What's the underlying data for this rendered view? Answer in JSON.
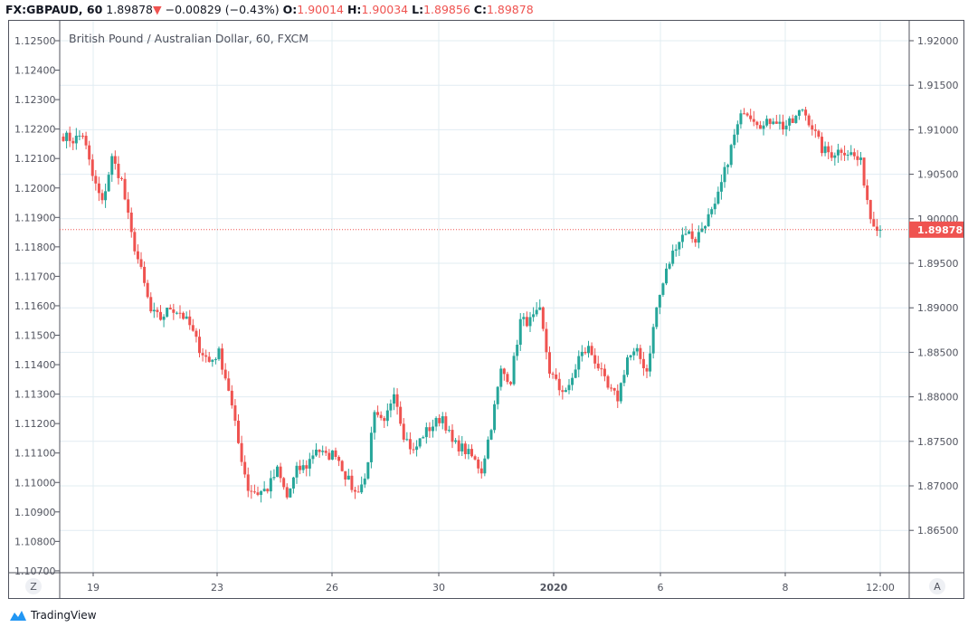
{
  "header": {
    "symbol": "FX:GBPAUD, 60",
    "last": "1.89878",
    "direction_icon": "triangle-down-icon",
    "change": "−0.00829 (−0.43%)",
    "o_label": "O:",
    "o": "1.90014",
    "h_label": "H:",
    "h": "1.90034",
    "l_label": "L:",
    "l": "1.89856",
    "c_label": "C:",
    "c": "1.89878"
  },
  "brand": {
    "name": "TradingView"
  },
  "buttons": {
    "zoom": "Z",
    "auto": "A"
  },
  "colors": {
    "up": "#26a69a",
    "down": "#ef5350",
    "grid": "#e1ecf2"
  },
  "chart_data": {
    "type": "candlestick",
    "title": "British Pound / Australian Dollar, 60, FXCM",
    "current_price": 1.89878,
    "current_price_label": "1.89878",
    "right_axis": {
      "ylim": [
        1.8635,
        1.9223
      ],
      "ticks": [
        "1.92000",
        "1.91500",
        "1.91000",
        "1.90500",
        "1.90000",
        "1.89500",
        "1.89000",
        "1.88500",
        "1.88000",
        "1.87500",
        "1.87000",
        "1.86500"
      ]
    },
    "left_axis": {
      "ticks": [
        "1.12500",
        "1.12400",
        "1.12300",
        "1.12200",
        "1.12100",
        "1.12000",
        "1.11900",
        "1.11800",
        "1.11700",
        "1.11600",
        "1.11500",
        "1.11400",
        "1.11300",
        "1.11200",
        "1.11100",
        "1.11000",
        "1.10900",
        "1.10800",
        "1.10700"
      ]
    },
    "x_ticks": [
      "19",
      "23",
      "26",
      "30",
      "2020",
      "6",
      "8",
      "12:00"
    ],
    "grid": true,
    "approx_closes": [
      1.90933,
      1.90882,
      1.90953,
      1.90476,
      1.90171,
      1.90679,
      1.90425,
      1.89815,
      1.89409,
      1.88951,
      1.8888,
      1.89002,
      1.88951,
      1.88799,
      1.88545,
      1.88392,
      1.88494,
      1.88087,
      1.87478,
      1.8697,
      1.86919,
      1.8697,
      1.87173,
      1.86868,
      1.87173,
      1.87224,
      1.87427,
      1.87325,
      1.87376,
      1.87122,
      1.86919,
      1.87071,
      1.87783,
      1.87681,
      1.88087,
      1.87579,
      1.87376,
      1.87579,
      1.87681,
      1.87783,
      1.87478,
      1.87427,
      1.87325,
      1.87173,
      1.87681,
      1.88291,
      1.88189,
      1.8885,
      1.8885,
      1.88951,
      1.88291,
      1.88087,
      1.88087,
      1.88443,
      1.88545,
      1.88342,
      1.88087,
      1.87986,
      1.88443,
      1.88494,
      1.88291,
      1.89002,
      1.89409,
      1.89713,
      1.89866,
      1.89764,
      1.89967,
      1.9012,
      1.90526,
      1.90933,
      1.91238,
      1.91136,
      1.91035,
      1.91136,
      1.91035,
      1.91085,
      1.91238,
      1.91035,
      1.9078,
      1.9073,
      1.9078,
      1.9073,
      1.90628,
      1.90018,
      1.89878
    ]
  }
}
